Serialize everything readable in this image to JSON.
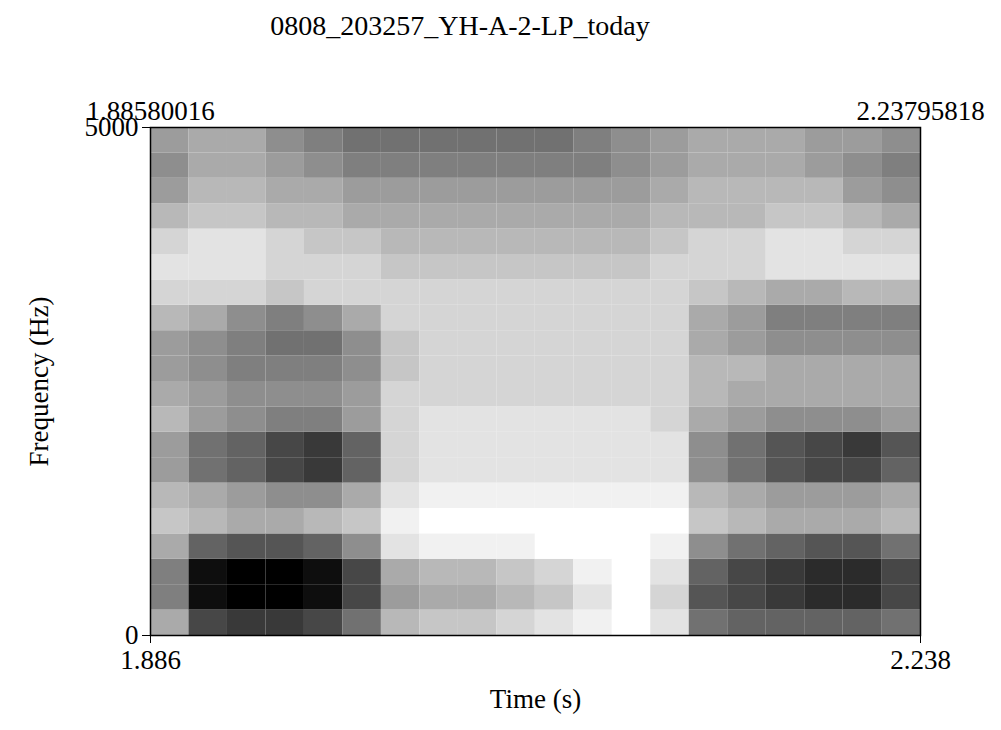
{
  "chart_data": {
    "type": "heatmap",
    "title": "0808_203257_YH-A-2-LP_today",
    "x_label": "Time (s)",
    "y_label": "Frequency (Hz)",
    "xlim": [
      1.88580016,
      2.23795818
    ],
    "xticks": [
      {
        "value": 1.88580016,
        "label": "1.886"
      },
      {
        "value": 2.23795818,
        "label": "2.238"
      }
    ],
    "top_xticks": [
      {
        "value": 1.88580016,
        "label": "1.88580016"
      },
      {
        "value": 2.23795818,
        "label": "2.23795818"
      }
    ],
    "ylim": [
      0,
      5000
    ],
    "yticks": [
      0,
      5000
    ],
    "color": "gray",
    "cells": {
      "time_bins": [
        1.8858,
        1.9034,
        1.921,
        1.9386,
        1.9562,
        1.9738,
        1.9914,
        2.009,
        2.0266,
        2.0442,
        2.0618,
        2.0794,
        2.097,
        2.1146,
        2.1322,
        2.1498,
        2.1674,
        2.185,
        2.2026,
        2.2202,
        2.23796
      ],
      "frequency_bins": [
        0,
        250,
        500,
        750,
        1000,
        1250,
        1500,
        1750,
        2000,
        2250,
        2500,
        2750,
        3000,
        3250,
        3500,
        3750,
        4000,
        4250,
        4500,
        4750,
        5000
      ],
      "intensity": [
        [
          0.35,
          0.7,
          0.75,
          0.75,
          0.7,
          0.55,
          0.3,
          0.25,
          0.25,
          0.2,
          0.15,
          0.1,
          0.05,
          0.15,
          0.55,
          0.6,
          0.6,
          0.6,
          0.6,
          0.55
        ],
        [
          0.5,
          0.9,
          0.95,
          0.95,
          0.9,
          0.7,
          0.4,
          0.35,
          0.35,
          0.3,
          0.25,
          0.15,
          0.05,
          0.2,
          0.65,
          0.7,
          0.75,
          0.8,
          0.8,
          0.7
        ],
        [
          0.5,
          0.9,
          0.95,
          0.95,
          0.9,
          0.7,
          0.35,
          0.3,
          0.3,
          0.25,
          0.2,
          0.1,
          0.05,
          0.15,
          0.6,
          0.7,
          0.75,
          0.8,
          0.8,
          0.7
        ],
        [
          0.35,
          0.6,
          0.65,
          0.65,
          0.6,
          0.45,
          0.15,
          0.1,
          0.1,
          0.1,
          0.05,
          0.05,
          0.05,
          0.1,
          0.45,
          0.55,
          0.6,
          0.65,
          0.65,
          0.55
        ],
        [
          0.25,
          0.3,
          0.35,
          0.35,
          0.3,
          0.25,
          0.1,
          0.05,
          0.05,
          0.05,
          0.05,
          0.05,
          0.05,
          0.05,
          0.25,
          0.3,
          0.35,
          0.35,
          0.35,
          0.3
        ],
        [
          0.3,
          0.35,
          0.4,
          0.45,
          0.45,
          0.35,
          0.15,
          0.1,
          0.1,
          0.1,
          0.1,
          0.1,
          0.1,
          0.1,
          0.3,
          0.35,
          0.4,
          0.4,
          0.4,
          0.35
        ],
        [
          0.4,
          0.55,
          0.6,
          0.7,
          0.75,
          0.6,
          0.2,
          0.15,
          0.15,
          0.15,
          0.15,
          0.15,
          0.15,
          0.15,
          0.45,
          0.55,
          0.65,
          0.7,
          0.7,
          0.6
        ],
        [
          0.4,
          0.55,
          0.6,
          0.7,
          0.75,
          0.6,
          0.2,
          0.15,
          0.15,
          0.15,
          0.15,
          0.15,
          0.15,
          0.15,
          0.45,
          0.55,
          0.65,
          0.7,
          0.75,
          0.65
        ],
        [
          0.3,
          0.4,
          0.45,
          0.5,
          0.5,
          0.4,
          0.2,
          0.15,
          0.15,
          0.15,
          0.15,
          0.15,
          0.15,
          0.2,
          0.35,
          0.4,
          0.45,
          0.45,
          0.45,
          0.4
        ],
        [
          0.35,
          0.4,
          0.45,
          0.45,
          0.45,
          0.4,
          0.2,
          0.2,
          0.2,
          0.2,
          0.2,
          0.2,
          0.2,
          0.2,
          0.3,
          0.35,
          0.35,
          0.35,
          0.35,
          0.35
        ],
        [
          0.4,
          0.45,
          0.5,
          0.5,
          0.5,
          0.45,
          0.25,
          0.2,
          0.2,
          0.2,
          0.2,
          0.2,
          0.2,
          0.2,
          0.3,
          0.3,
          0.35,
          0.35,
          0.35,
          0.35
        ],
        [
          0.4,
          0.45,
          0.5,
          0.55,
          0.55,
          0.45,
          0.25,
          0.2,
          0.2,
          0.2,
          0.2,
          0.2,
          0.2,
          0.2,
          0.35,
          0.4,
          0.45,
          0.45,
          0.45,
          0.45
        ],
        [
          0.3,
          0.35,
          0.45,
          0.5,
          0.45,
          0.35,
          0.2,
          0.2,
          0.2,
          0.2,
          0.2,
          0.2,
          0.2,
          0.2,
          0.35,
          0.4,
          0.5,
          0.5,
          0.5,
          0.5
        ],
        [
          0.2,
          0.2,
          0.2,
          0.25,
          0.2,
          0.2,
          0.2,
          0.2,
          0.2,
          0.2,
          0.2,
          0.2,
          0.2,
          0.2,
          0.25,
          0.3,
          0.35,
          0.35,
          0.3,
          0.3
        ],
        [
          0.15,
          0.15,
          0.15,
          0.2,
          0.2,
          0.2,
          0.25,
          0.25,
          0.25,
          0.25,
          0.25,
          0.25,
          0.25,
          0.2,
          0.2,
          0.2,
          0.15,
          0.15,
          0.15,
          0.15
        ],
        [
          0.2,
          0.15,
          0.15,
          0.2,
          0.25,
          0.25,
          0.3,
          0.3,
          0.3,
          0.3,
          0.3,
          0.3,
          0.3,
          0.25,
          0.2,
          0.2,
          0.15,
          0.15,
          0.2,
          0.2
        ],
        [
          0.3,
          0.25,
          0.25,
          0.3,
          0.3,
          0.35,
          0.35,
          0.35,
          0.35,
          0.35,
          0.35,
          0.35,
          0.35,
          0.3,
          0.3,
          0.3,
          0.25,
          0.25,
          0.3,
          0.35
        ],
        [
          0.4,
          0.3,
          0.3,
          0.35,
          0.35,
          0.4,
          0.4,
          0.4,
          0.4,
          0.4,
          0.4,
          0.4,
          0.4,
          0.35,
          0.3,
          0.3,
          0.3,
          0.3,
          0.4,
          0.45
        ],
        [
          0.45,
          0.35,
          0.35,
          0.4,
          0.45,
          0.5,
          0.5,
          0.5,
          0.5,
          0.5,
          0.5,
          0.5,
          0.45,
          0.4,
          0.35,
          0.35,
          0.35,
          0.4,
          0.45,
          0.5
        ],
        [
          0.4,
          0.35,
          0.35,
          0.45,
          0.5,
          0.55,
          0.55,
          0.55,
          0.55,
          0.55,
          0.55,
          0.5,
          0.45,
          0.4,
          0.35,
          0.35,
          0.35,
          0.4,
          0.4,
          0.45
        ]
      ]
    }
  }
}
